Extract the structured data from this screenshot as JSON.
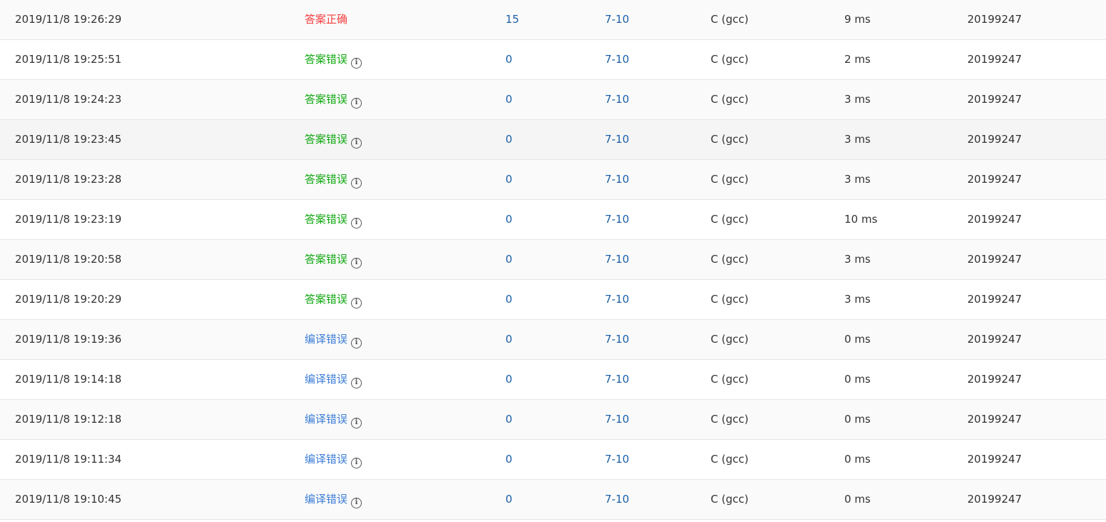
{
  "colors": {
    "accepted": "#f53f3f",
    "wrong_answer": "#12a812",
    "compile_error": "#3d7ed6"
  },
  "info_icon": "info-circle-icon",
  "rows": [
    {
      "time": "2019/11/8 19:26:29",
      "status": "答案正确",
      "kind": "accepted",
      "score": "15",
      "problem": "7-10",
      "compiler": "C (gcc)",
      "duration": "9 ms",
      "user": "20199247"
    },
    {
      "time": "2019/11/8 19:25:51",
      "status": "答案错误",
      "kind": "wrong_answer",
      "score": "0",
      "problem": "7-10",
      "compiler": "C (gcc)",
      "duration": "2 ms",
      "user": "20199247"
    },
    {
      "time": "2019/11/8 19:24:23",
      "status": "答案错误",
      "kind": "wrong_answer",
      "score": "0",
      "problem": "7-10",
      "compiler": "C (gcc)",
      "duration": "3 ms",
      "user": "20199247"
    },
    {
      "time": "2019/11/8 19:23:45",
      "status": "答案错误",
      "kind": "wrong_answer",
      "score": "0",
      "problem": "7-10",
      "compiler": "C (gcc)",
      "duration": "3 ms",
      "user": "20199247"
    },
    {
      "time": "2019/11/8 19:23:28",
      "status": "答案错误",
      "kind": "wrong_answer",
      "score": "0",
      "problem": "7-10",
      "compiler": "C (gcc)",
      "duration": "3 ms",
      "user": "20199247"
    },
    {
      "time": "2019/11/8 19:23:19",
      "status": "答案错误",
      "kind": "wrong_answer",
      "score": "0",
      "problem": "7-10",
      "compiler": "C (gcc)",
      "duration": "10 ms",
      "user": "20199247"
    },
    {
      "time": "2019/11/8 19:20:58",
      "status": "答案错误",
      "kind": "wrong_answer",
      "score": "0",
      "problem": "7-10",
      "compiler": "C (gcc)",
      "duration": "3 ms",
      "user": "20199247"
    },
    {
      "time": "2019/11/8 19:20:29",
      "status": "答案错误",
      "kind": "wrong_answer",
      "score": "0",
      "problem": "7-10",
      "compiler": "C (gcc)",
      "duration": "3 ms",
      "user": "20199247"
    },
    {
      "time": "2019/11/8 19:19:36",
      "status": "编译错误",
      "kind": "compile_error",
      "score": "0",
      "problem": "7-10",
      "compiler": "C (gcc)",
      "duration": "0 ms",
      "user": "20199247"
    },
    {
      "time": "2019/11/8 19:14:18",
      "status": "编译错误",
      "kind": "compile_error",
      "score": "0",
      "problem": "7-10",
      "compiler": "C (gcc)",
      "duration": "0 ms",
      "user": "20199247"
    },
    {
      "time": "2019/11/8 19:12:18",
      "status": "编译错误",
      "kind": "compile_error",
      "score": "0",
      "problem": "7-10",
      "compiler": "C (gcc)",
      "duration": "0 ms",
      "user": "20199247"
    },
    {
      "time": "2019/11/8 19:11:34",
      "status": "编译错误",
      "kind": "compile_error",
      "score": "0",
      "problem": "7-10",
      "compiler": "C (gcc)",
      "duration": "0 ms",
      "user": "20199247"
    },
    {
      "time": "2019/11/8 19:10:45",
      "status": "编译错误",
      "kind": "compile_error",
      "score": "0",
      "problem": "7-10",
      "compiler": "C (gcc)",
      "duration": "0 ms",
      "user": "20199247"
    }
  ]
}
